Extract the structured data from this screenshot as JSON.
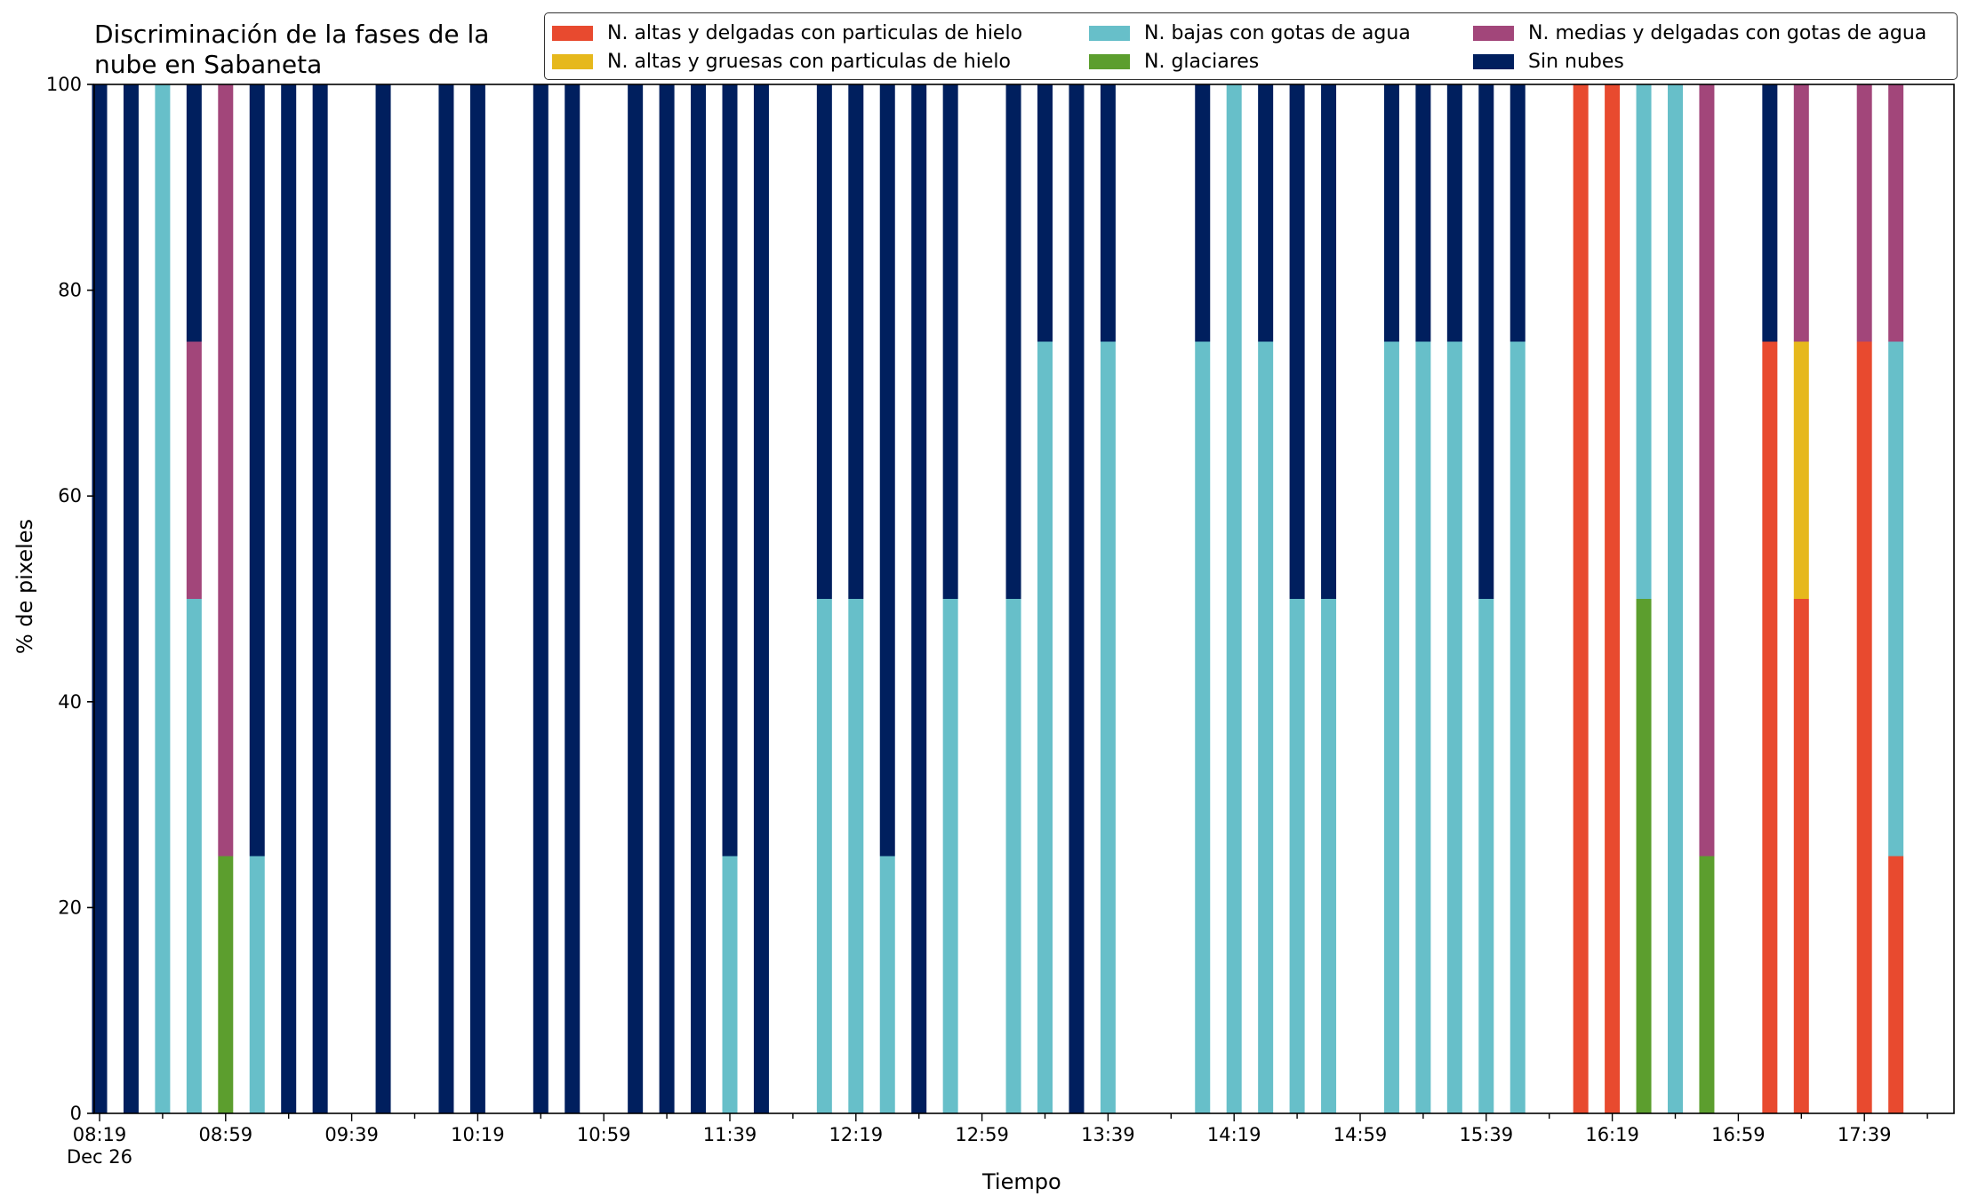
{
  "chart_data": {
    "type": "bar",
    "stacked": true,
    "title": "Discriminación de la fases de la\nnube en Sabaneta",
    "xlabel": "Tiempo",
    "ylabel": "% de pixeles",
    "ylim": [
      0,
      100
    ],
    "yticks": [
      "0",
      "20",
      "40",
      "60",
      "80",
      "100"
    ],
    "grid": false,
    "legend_placement": "top-right",
    "x_start": "08:19",
    "x_interval_minutes": 10,
    "x_count": 59,
    "xticks": [
      "08:19",
      "08:59",
      "09:39",
      "10:19",
      "10:59",
      "11:39",
      "12:19",
      "12:59",
      "13:39",
      "14:19",
      "14:59",
      "15:39",
      "16:19",
      "16:59",
      "17:39"
    ],
    "xtick_date": "Dec 26",
    "series": [
      {
        "name": "N. altas y delgadas con particulas de hielo",
        "color": "#e84a2f",
        "bars": [
          [
            47,
            100
          ],
          [
            48,
            100
          ],
          [
            53,
            75
          ],
          [
            54,
            50
          ],
          [
            56,
            75
          ],
          [
            57,
            25
          ]
        ]
      },
      {
        "name": "N. altas y gruesas con particulas de hielo",
        "color": "#e6b81c",
        "bars": [
          [
            54,
            25
          ]
        ]
      },
      {
        "name": "N. glaciares",
        "color": "#5c9e2e",
        "bars": [
          [
            4,
            25
          ],
          [
            49,
            50
          ],
          [
            51,
            25
          ]
        ]
      },
      {
        "name": "N. bajas con gotas de agua",
        "color": "#67bfc9",
        "bars": [
          [
            2,
            100
          ],
          [
            3,
            50
          ],
          [
            5,
            25
          ],
          [
            20,
            25
          ],
          [
            23,
            50
          ],
          [
            24,
            50
          ],
          [
            25,
            25
          ],
          [
            27,
            50
          ],
          [
            29,
            50
          ],
          [
            30,
            75
          ],
          [
            32,
            75
          ],
          [
            35,
            75
          ],
          [
            36,
            100
          ],
          [
            37,
            75
          ],
          [
            38,
            50
          ],
          [
            39,
            50
          ],
          [
            41,
            75
          ],
          [
            42,
            75
          ],
          [
            43,
            75
          ],
          [
            44,
            50
          ],
          [
            45,
            75
          ],
          [
            49,
            50
          ],
          [
            50,
            100
          ],
          [
            57,
            50
          ]
        ]
      },
      {
        "name": "N. medias y delgadas con gotas de agua",
        "color": "#a2467a",
        "bars": [
          [
            3,
            25
          ],
          [
            4,
            75
          ],
          [
            51,
            75
          ],
          [
            54,
            25
          ],
          [
            56,
            25
          ],
          [
            57,
            25
          ]
        ]
      },
      {
        "name": "Sin nubes",
        "color": "#001f5e",
        "bars": [
          [
            0,
            100
          ],
          [
            1,
            100
          ],
          [
            3,
            25
          ],
          [
            5,
            75
          ],
          [
            6,
            100
          ],
          [
            7,
            100
          ],
          [
            9,
            100
          ],
          [
            11,
            100
          ],
          [
            12,
            100
          ],
          [
            14,
            100
          ],
          [
            15,
            100
          ],
          [
            17,
            100
          ],
          [
            18,
            100
          ],
          [
            19,
            100
          ],
          [
            20,
            75
          ],
          [
            21,
            100
          ],
          [
            23,
            50
          ],
          [
            24,
            50
          ],
          [
            25,
            75
          ],
          [
            26,
            100
          ],
          [
            27,
            50
          ],
          [
            29,
            50
          ],
          [
            30,
            25
          ],
          [
            31,
            100
          ],
          [
            32,
            25
          ],
          [
            35,
            25
          ],
          [
            37,
            25
          ],
          [
            38,
            50
          ],
          [
            39,
            50
          ],
          [
            41,
            25
          ],
          [
            42,
            25
          ],
          [
            43,
            25
          ],
          [
            44,
            50
          ],
          [
            45,
            25
          ],
          [
            53,
            25
          ]
        ]
      }
    ]
  }
}
